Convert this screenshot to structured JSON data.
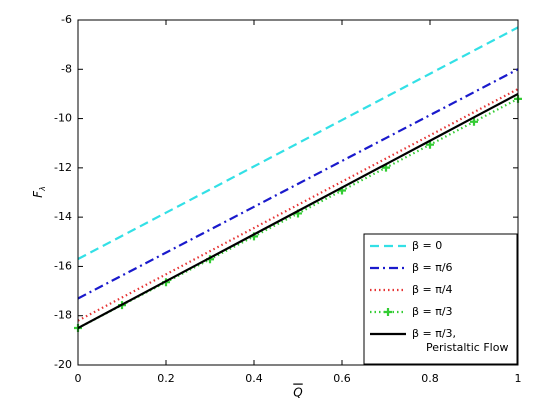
{
  "chart_data": {
    "type": "line",
    "xlabel": "Q",
    "ylabel": "Fλ",
    "x": [
      0,
      0.1,
      0.2,
      0.3,
      0.4,
      0.5,
      0.6,
      0.7,
      0.8,
      0.9,
      1
    ],
    "series": [
      {
        "name": "β = 0",
        "color": "#33e0e6",
        "style": "dashed",
        "values": [
          -15.7,
          -14.76,
          -13.82,
          -12.88,
          -11.94,
          -11.0,
          -10.06,
          -9.12,
          -8.18,
          -7.24,
          -6.3
        ]
      },
      {
        "name": "β = π/6",
        "color": "#1a1acc",
        "style": "dashdot",
        "values": [
          -17.3,
          -16.37,
          -15.44,
          -14.51,
          -13.58,
          -12.65,
          -11.72,
          -10.79,
          -9.86,
          -8.93,
          -8.0
        ]
      },
      {
        "name": "β = π/4",
        "color": "#e63333",
        "style": "dotted",
        "values": [
          -18.2,
          -17.26,
          -16.32,
          -15.38,
          -14.44,
          -13.5,
          -12.56,
          -11.62,
          -10.68,
          -9.74,
          -8.8
        ]
      },
      {
        "name": "β = π/3",
        "color": "#33cc33",
        "style": "dotted",
        "marker": "+",
        "values": [
          -18.5,
          -17.57,
          -16.64,
          -15.71,
          -14.78,
          -13.85,
          -12.92,
          -11.99,
          -11.06,
          -10.13,
          -9.2
        ]
      },
      {
        "name": "β = π/3,\nPeristaltic Flow",
        "color": "#000000",
        "style": "solid",
        "values": [
          -18.5,
          -17.55,
          -16.6,
          -15.65,
          -14.7,
          -13.75,
          -12.8,
          -11.85,
          -10.9,
          -9.95,
          -9.0
        ]
      }
    ],
    "xlim": [
      0,
      1
    ],
    "xticks": [
      0,
      0.2,
      0.4,
      0.6,
      0.8,
      1
    ],
    "ylim": [
      -20,
      -6
    ],
    "yticks": [
      -20,
      -18,
      -16,
      -14,
      -12,
      -10,
      -8,
      -6
    ],
    "grid": false,
    "legend": "lower right"
  }
}
